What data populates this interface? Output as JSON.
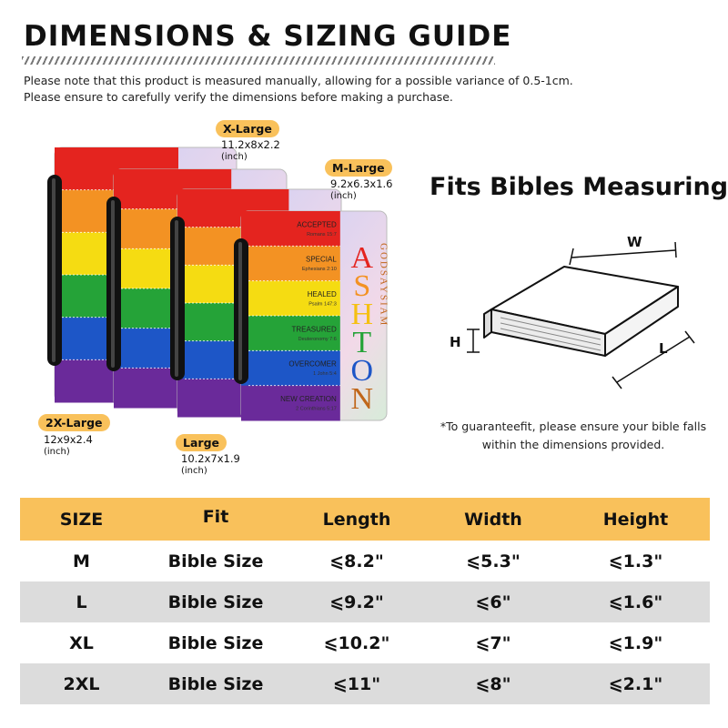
{
  "header": {
    "title": "DIMENSIONS & SIZING GUIDE",
    "note_line1": "Please note that this product is measured manually, allowing for a possible variance of 0.5-1cm.",
    "note_line2": "Please ensure to carefully verify the dimensions before making a purchase."
  },
  "sizes": {
    "xl": {
      "label": "X-Large",
      "dims": "11.2x8x2.2",
      "unit": "(inch)"
    },
    "m": {
      "label": "M-Large",
      "dims": "9.2x6.3x1.6",
      "unit": "(inch)"
    },
    "xxl": {
      "label": "2X-Large",
      "dims": "12x9x2.4",
      "unit": "(inch)"
    },
    "l": {
      "label": "Large",
      "dims": "10.2x7x1.9",
      "unit": "(inch)"
    }
  },
  "cover": {
    "name_letters": [
      "A",
      "S",
      "H",
      "T",
      "O",
      "N"
    ],
    "vertical_text": "GOD SAYS I AM",
    "bands": [
      {
        "word": "ACCEPTED",
        "ref": "Romans 15:7",
        "color": "#e4241f"
      },
      {
        "word": "SPECIAL",
        "ref": "Ephesians 2:10",
        "color": "#f39223"
      },
      {
        "word": "HEALED",
        "ref": "Psalm 147:3",
        "color": "#f5dc12"
      },
      {
        "word": "TREASURED",
        "ref": "Deuteronomy 7:6",
        "color": "#25a338"
      },
      {
        "word": "OVERCOMER",
        "ref": "1 John 5:4",
        "color": "#1d56c7"
      },
      {
        "word": "NEW CREATION",
        "ref": "2 Corinthians 5:17",
        "color": "#6a2a9a"
      }
    ],
    "letter_colors": [
      "#e4241f",
      "#f39223",
      "#f5c012",
      "#25a338",
      "#1d56c7",
      "#c0661a"
    ]
  },
  "book_diagram": {
    "heading": "Fits Bibles Measuring",
    "w_label": "W",
    "h_label": "H",
    "l_label": "L",
    "note_line1": "*To guaranteefit, please ensure your bible falls",
    "note_line2": "within the dimensions provided."
  },
  "table": {
    "headers": [
      "SIZE",
      "Fit",
      "Length",
      "Width",
      "Height"
    ],
    "rows": [
      [
        "M",
        "Bible Size",
        "⩽8.2\"",
        "⩽5.3\"",
        "⩽1.3\""
      ],
      [
        "L",
        "Bible Size",
        "⩽9.2\"",
        "⩽6\"",
        "⩽1.6\""
      ],
      [
        "XL",
        "Bible Size",
        "⩽10.2\"",
        "⩽7\"",
        "⩽1.9\""
      ],
      [
        "2XL",
        "Bible Size",
        "⩽11\"",
        "⩽8\"",
        "⩽2.1\""
      ]
    ]
  },
  "colors": {
    "accent": "#f9c15b",
    "row_alt": "#dcdcdc"
  }
}
